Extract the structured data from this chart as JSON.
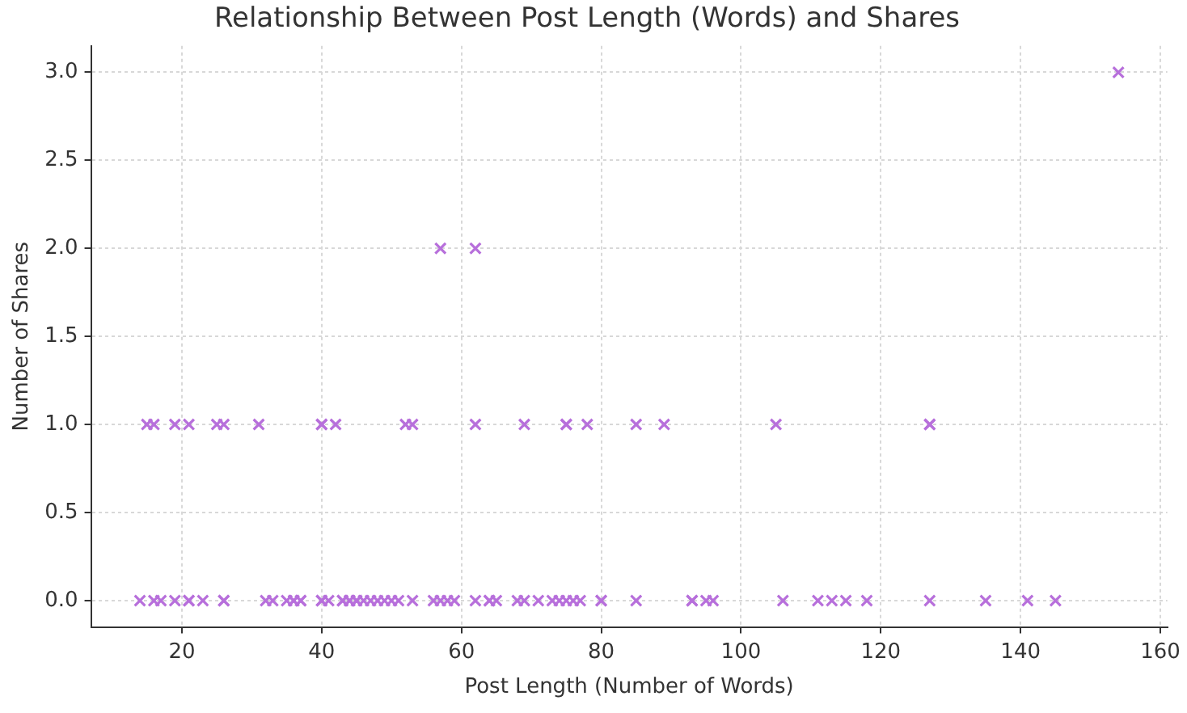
{
  "chart_data": {
    "type": "scatter",
    "title": "Relationship Between Post Length (Words) and Shares",
    "xlabel": "Post Length (Number of Words)",
    "ylabel": "Number of Shares",
    "x": [
      14,
      16,
      17,
      19,
      21,
      21,
      23,
      26,
      26,
      32,
      33,
      35,
      36,
      36,
      37,
      37,
      40,
      40,
      41,
      43,
      43,
      44,
      44,
      45,
      45,
      46,
      47,
      48,
      49,
      50,
      51,
      53,
      56,
      57,
      58,
      59,
      62,
      64,
      64,
      65,
      68,
      69,
      71,
      73,
      74,
      75,
      76,
      77,
      80,
      80,
      85,
      93,
      93,
      95,
      96,
      106,
      111,
      113,
      115,
      118,
      127,
      135,
      141,
      145,
      15,
      16,
      19,
      21,
      25,
      26,
      31,
      40,
      40,
      42,
      52,
      53,
      62,
      69,
      75,
      75,
      78,
      85,
      89,
      105,
      127,
      127,
      57,
      62,
      154
    ],
    "values": [
      0,
      0,
      0,
      0,
      0,
      0,
      0,
      0,
      0,
      0,
      0,
      0,
      0,
      0,
      0,
      0,
      0,
      0,
      0,
      0,
      0,
      0,
      0,
      0,
      0,
      0,
      0,
      0,
      0,
      0,
      0,
      0,
      0,
      0,
      0,
      0,
      0,
      0,
      0,
      0,
      0,
      0,
      0,
      0,
      0,
      0,
      0,
      0,
      0,
      0,
      0,
      0,
      0,
      0,
      0,
      0,
      0,
      0,
      0,
      0,
      0,
      0,
      0,
      0,
      1,
      1,
      1,
      1,
      1,
      1,
      1,
      1,
      1,
      1,
      1,
      1,
      1,
      1,
      1,
      1,
      1,
      1,
      1,
      1,
      1,
      1,
      2,
      2,
      3
    ],
    "color": "#b76fdb",
    "marker": "cross",
    "xlim": [
      7,
      161
    ],
    "xticks": [
      20,
      40,
      60,
      80,
      100,
      120,
      140,
      160
    ],
    "ylim": [
      -0.15,
      3.15
    ],
    "yticks": [
      {
        "value": 0,
        "label": "0.0"
      },
      {
        "value": 0.5,
        "label": "0.5"
      },
      {
        "value": 1,
        "label": "1.0"
      },
      {
        "value": 1.5,
        "label": "1.5"
      },
      {
        "value": 2,
        "label": "2.0"
      },
      {
        "value": 2.5,
        "label": "2.5"
      },
      {
        "value": 3,
        "label": "3.0"
      }
    ],
    "grid": true
  }
}
